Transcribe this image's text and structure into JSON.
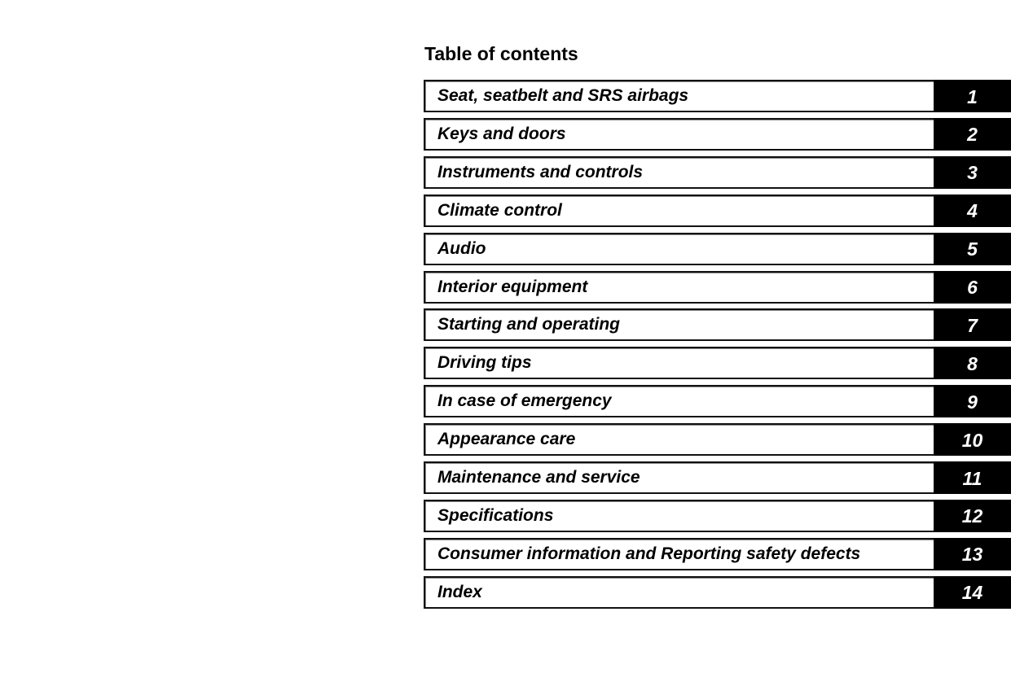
{
  "title": "Table of contents",
  "chapters": [
    {
      "label": "Seat, seatbelt and SRS airbags",
      "number": "1"
    },
    {
      "label": "Keys and doors",
      "number": "2"
    },
    {
      "label": "Instruments and controls",
      "number": "3"
    },
    {
      "label": "Climate control",
      "number": "4"
    },
    {
      "label": "Audio",
      "number": "5"
    },
    {
      "label": "Interior equipment",
      "number": "6"
    },
    {
      "label": "Starting and operating",
      "number": "7"
    },
    {
      "label": "Driving tips",
      "number": "8"
    },
    {
      "label": "In case of emergency",
      "number": "9"
    },
    {
      "label": "Appearance care",
      "number": "10"
    },
    {
      "label": "Maintenance and service",
      "number": "11"
    },
    {
      "label": "Specifications",
      "number": "12"
    },
    {
      "label": "Consumer information and Reporting safety defects",
      "number": "13"
    },
    {
      "label": "Index",
      "number": "14"
    }
  ]
}
